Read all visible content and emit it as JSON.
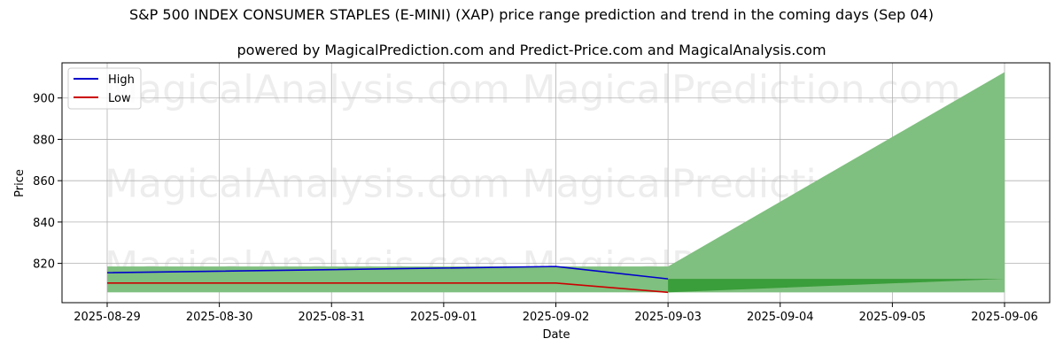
{
  "chart_data": {
    "type": "line",
    "title": "S&P 500 INDEX CONSUMER STAPLES (E-MINI) (XAP) price range prediction and trend in the coming days (Sep 04)",
    "subtitle": "powered by MagicalPrediction.com and Predict-Price.com and MagicalAnalysis.com",
    "xlabel": "Date",
    "ylabel": "Price",
    "x": [
      "2025-08-29",
      "2025-08-30",
      "2025-08-31",
      "2025-09-01",
      "2025-09-02",
      "2025-09-03",
      "2025-09-04",
      "2025-09-05",
      "2025-09-06"
    ],
    "y_ticks": [
      820,
      840,
      860,
      880,
      900
    ],
    "ylim": [
      801,
      917
    ],
    "grid": true,
    "legend_position": "top-left",
    "series": [
      {
        "name": "High",
        "color": "#0000cc",
        "x": [
          "2025-08-29",
          "2025-09-02",
          "2025-09-03"
        ],
        "values": [
          815.5,
          818.5,
          812.5
        ]
      },
      {
        "name": "Low",
        "color": "#cc0000",
        "x": [
          "2025-08-29",
          "2025-09-02",
          "2025-09-03"
        ],
        "values": [
          810.5,
          810.5,
          806
        ]
      }
    ],
    "historical_band": {
      "x_start": "2025-08-29",
      "x_end": "2025-09-03",
      "low": 806,
      "high": 818.5,
      "color": "#7fbf7f"
    },
    "prediction_band": {
      "x": [
        "2025-09-03",
        "2025-09-06"
      ],
      "low": [
        806,
        806
      ],
      "high": [
        818.5,
        912.5
      ],
      "color": "#7fbf7f"
    },
    "prediction_inner_band": {
      "x": [
        "2025-09-03",
        "2025-09-06"
      ],
      "upper": [
        812.5,
        812.5
      ],
      "lower": [
        806,
        812.5
      ],
      "color": "#3a9e3a"
    },
    "watermarks": [
      "MagicalAnalysis.com",
      "MagicalPrediction.com"
    ]
  }
}
